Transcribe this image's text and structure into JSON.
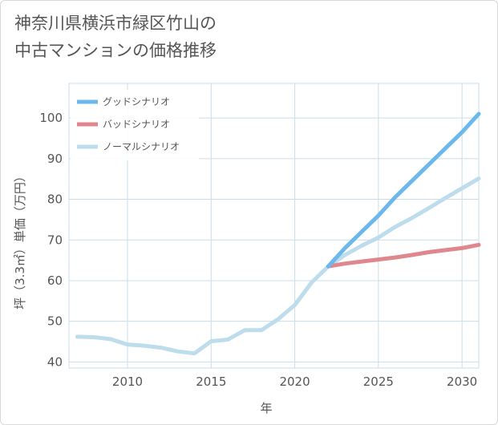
{
  "title_lines": [
    "神奈川県横浜市緑区竹山の",
    "中古マンションの価格推移"
  ],
  "chart_data": {
    "type": "line",
    "xlabel": "年",
    "ylabel": "坪（3.3㎡）単価（万円）",
    "xlim": [
      2006.5,
      2031
    ],
    "ylim": [
      38.5,
      108.5
    ],
    "xticks": [
      2010,
      2015,
      2020,
      2025,
      2030
    ],
    "yticks": [
      40,
      50,
      60,
      70,
      80,
      90,
      100
    ],
    "grid": true,
    "legend_position": "top-left",
    "series": [
      {
        "name": "グッドシナリオ",
        "color": "#6cb8ec",
        "x": [
          2022,
          2023,
          2024,
          2025,
          2026,
          2027,
          2028,
          2029,
          2030,
          2031
        ],
        "y": [
          63.5,
          68.0,
          72.0,
          76.0,
          80.5,
          84.5,
          88.5,
          92.5,
          96.5,
          101.0
        ]
      },
      {
        "name": "バッドシナリオ",
        "color": "#e0868d",
        "x": [
          2022,
          2023,
          2024,
          2025,
          2026,
          2027,
          2028,
          2029,
          2030,
          2031
        ],
        "y": [
          63.5,
          64.2,
          64.7,
          65.2,
          65.7,
          66.3,
          67.0,
          67.5,
          68.0,
          68.8
        ]
      },
      {
        "name": "ノーマルシナリオ",
        "color": "#bddcec",
        "x": [
          2007,
          2008,
          2009,
          2010,
          2011,
          2012,
          2013,
          2014,
          2015,
          2016,
          2017,
          2018,
          2019,
          2020,
          2021,
          2022,
          2023,
          2024,
          2025,
          2026,
          2027,
          2028,
          2029,
          2030,
          2031
        ],
        "y": [
          46.2,
          46.1,
          45.6,
          44.3,
          44.0,
          43.5,
          42.6,
          42.1,
          45.1,
          45.5,
          47.8,
          47.8,
          50.5,
          54.0,
          59.5,
          63.5,
          66.3,
          68.6,
          70.6,
          73.2,
          75.4,
          77.8,
          80.3,
          82.7,
          85.1
        ]
      }
    ]
  }
}
